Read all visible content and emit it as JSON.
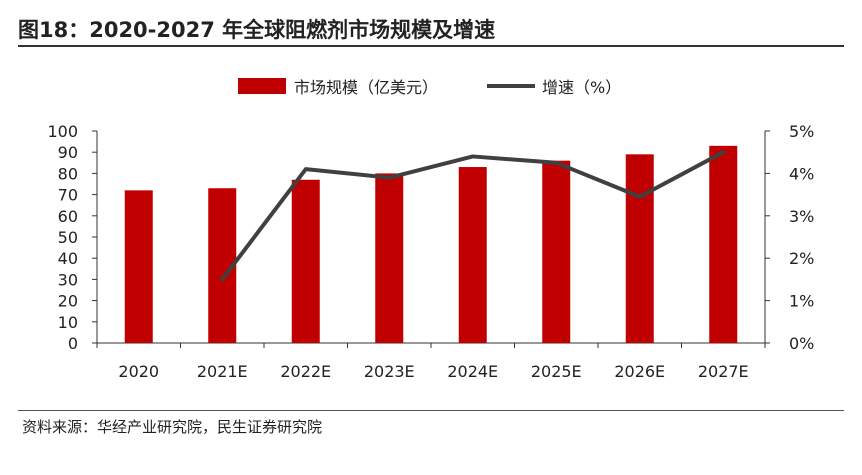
{
  "title": "图18：2020-2027 年全球阻燃剂市场规模及增速",
  "source": "资料来源：华经产业研究院，民生证券研究院",
  "colors": {
    "bar": "#c00000",
    "line": "#404040"
  },
  "chart_data": {
    "type": "bar",
    "categories": [
      "2020",
      "2021E",
      "2022E",
      "2023E",
      "2024E",
      "2025E",
      "2026E",
      "2027E"
    ],
    "series": [
      {
        "name": "市场规模（亿美元）",
        "type": "bar",
        "axis": "left",
        "values": [
          72,
          73,
          77,
          80,
          83,
          86,
          89,
          93
        ]
      },
      {
        "name": "增速（%）",
        "type": "line",
        "axis": "right",
        "values": [
          null,
          1.5,
          4.1,
          3.9,
          4.4,
          4.25,
          3.45,
          4.5
        ]
      }
    ],
    "y_left": {
      "lim": [
        0,
        100
      ],
      "ticks": [
        "0",
        "10",
        "20",
        "30",
        "40",
        "50",
        "60",
        "70",
        "80",
        "90",
        "100"
      ]
    },
    "y_right": {
      "lim": [
        0,
        5
      ],
      "ticks": [
        "0%",
        "1%",
        "2%",
        "3%",
        "4%",
        "5%"
      ]
    },
    "legend": "top-center",
    "grid": false
  }
}
